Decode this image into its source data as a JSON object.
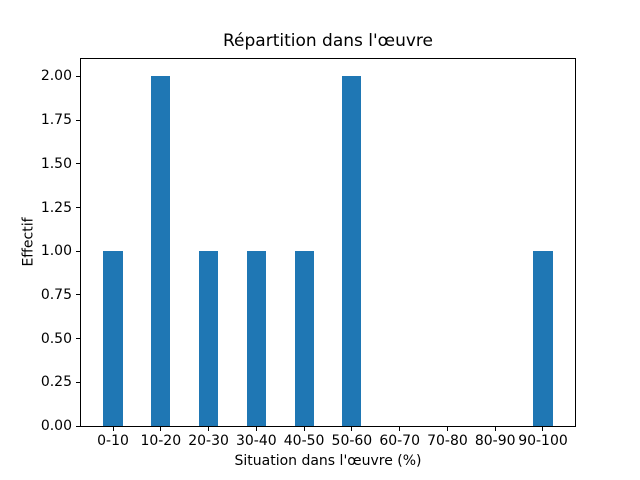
{
  "chart_data": {
    "type": "bar",
    "title": "Répartition dans l'œuvre",
    "xlabel": "Situation dans l'œuvre (%)",
    "ylabel": "Effectif",
    "categories": [
      "0-10",
      "10-20",
      "20-30",
      "30-40",
      "40-50",
      "50-60",
      "60-70",
      "70-80",
      "80-90",
      "90-100"
    ],
    "values": [
      1,
      2,
      1,
      1,
      1,
      2,
      0,
      0,
      0,
      1
    ],
    "ylim": [
      0,
      2.1
    ],
    "yticks": [
      "0.00",
      "0.25",
      "0.50",
      "0.75",
      "1.00",
      "1.25",
      "1.50",
      "1.75",
      "2.00"
    ],
    "bar_width_fraction": 0.4,
    "x_margin": 0.67,
    "bar_color": "#1f77b4",
    "axis_color": "#000000",
    "background_color": "#ffffff",
    "grid": false,
    "legend_position": "none"
  }
}
